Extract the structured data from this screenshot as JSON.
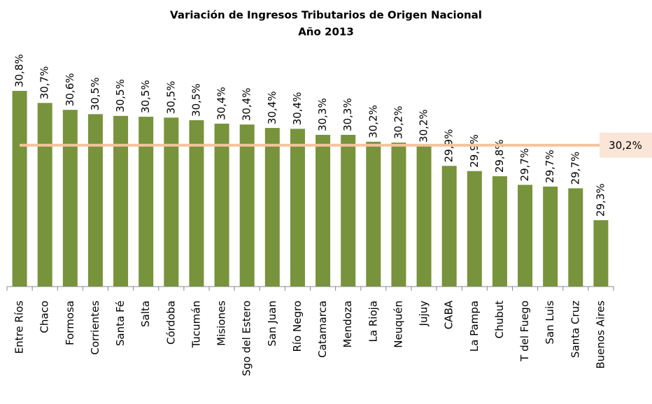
{
  "chart_data": {
    "type": "bar",
    "title": "Variación de Ingresos Tributarios de Origen Nacional",
    "subtitle": "Año 2013",
    "categories": [
      "Entre Ríos",
      "Chaco",
      "Formosa",
      "Corrientes",
      "Santa Fé",
      "Salta",
      "Córdoba",
      "Tucumán",
      "Misiones",
      "Sgo del Estero",
      "San Juan",
      "Río Negro",
      "Catamarca",
      "Mendoza",
      "La Rioja",
      "Neuquén",
      "Jujuy",
      "CABA",
      "La Pampa",
      "Chubut",
      "T del Fuego",
      "San Luis",
      "Santa Cruz",
      "Buenos Aires"
    ],
    "values": [
      30.8,
      30.66,
      30.58,
      30.53,
      30.51,
      30.5,
      30.49,
      30.46,
      30.42,
      30.41,
      30.37,
      30.36,
      30.29,
      30.29,
      30.21,
      30.2,
      30.16,
      29.93,
      29.87,
      29.81,
      29.71,
      29.69,
      29.67,
      29.3
    ],
    "value_labels": [
      "30,8%",
      "30,7%",
      "30,6%",
      "30,5%",
      "30,5%",
      "30,5%",
      "30,5%",
      "30,5%",
      "30,4%",
      "30,4%",
      "30,4%",
      "30,4%",
      "30,3%",
      "30,3%",
      "30,2%",
      "30,2%",
      "30,2%",
      "29,9%",
      "29,9%",
      "29,8%",
      "29,7%",
      "29,7%",
      "29,7%",
      "29,3%"
    ],
    "color": "#77933c",
    "ylim": [
      28.53,
      30.93
    ],
    "reference_line": {
      "value": 30.17,
      "label": "30,2%",
      "color": "#f5c39b"
    }
  }
}
